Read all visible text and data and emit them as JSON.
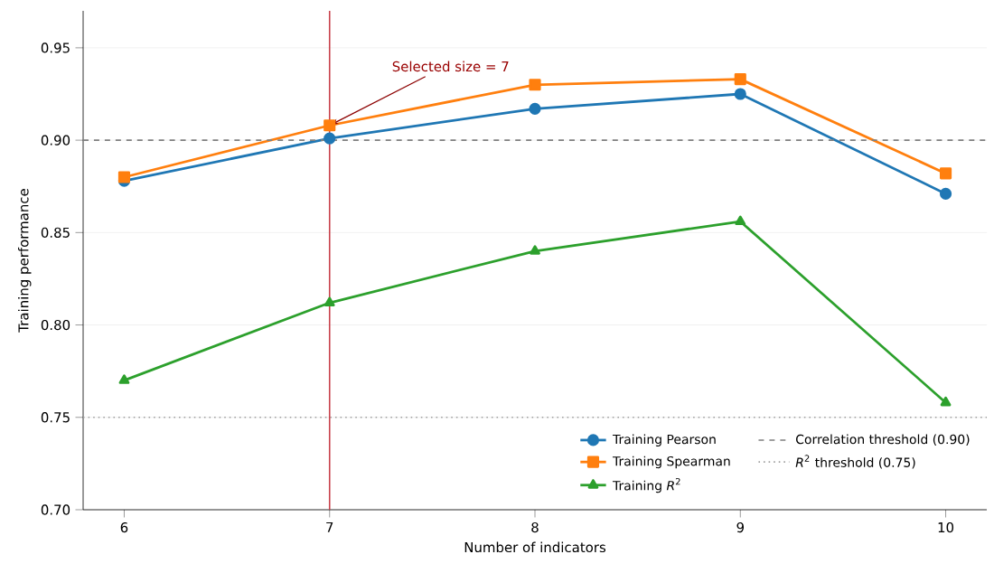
{
  "chart_data": {
    "type": "line",
    "xlabel": "Number of indicators",
    "ylabel": "Training performance",
    "x": [
      6,
      7,
      8,
      9,
      10
    ],
    "series": [
      {
        "name": "Training Pearson",
        "color": "#1f77b4",
        "marker": "circle",
        "values": [
          0.878,
          0.901,
          0.917,
          0.925,
          0.871
        ]
      },
      {
        "name": "Training Spearman",
        "color": "#ff7f0e",
        "marker": "square",
        "values": [
          0.88,
          0.908,
          0.93,
          0.933,
          0.882
        ]
      },
      {
        "name": "Training *R*$^{2}$",
        "color": "#2ca02c",
        "marker": "triangle",
        "values": [
          0.77,
          0.812,
          0.84,
          0.856,
          0.758
        ]
      }
    ],
    "xlim": [
      5.8,
      10.2
    ],
    "ylim": [
      0.7,
      0.97
    ],
    "xticks": [
      6,
      7,
      8,
      9,
      10
    ],
    "yticks": [
      {
        "value": 0.7,
        "label": "0.70"
      },
      {
        "value": 0.75,
        "label": "0.75"
      },
      {
        "value": 0.8,
        "label": "0.80"
      },
      {
        "value": 0.85,
        "label": "0.85"
      },
      {
        "value": 0.9,
        "label": "0.90"
      },
      {
        "value": 0.95,
        "label": "0.95"
      }
    ],
    "ref_lines": [
      {
        "axis": "y",
        "value": 0.9,
        "label": "Correlation threshold (0.90)",
        "color": "#808080",
        "line_style": "dashed"
      },
      {
        "axis": "y",
        "value": 0.75,
        "label": "*R*$^{2}$ threshold (0.75)",
        "color": "#a0a0a0",
        "line_style": "dotted"
      },
      {
        "axis": "x",
        "value": 7,
        "color": "#c8414b",
        "line_style": "solid"
      }
    ],
    "annotations": [
      {
        "text": "Selected size = 7",
        "x": 7,
        "y": 0.908
      }
    ],
    "grid": "y",
    "legend": "bottom right",
    "line_style": "solid"
  }
}
